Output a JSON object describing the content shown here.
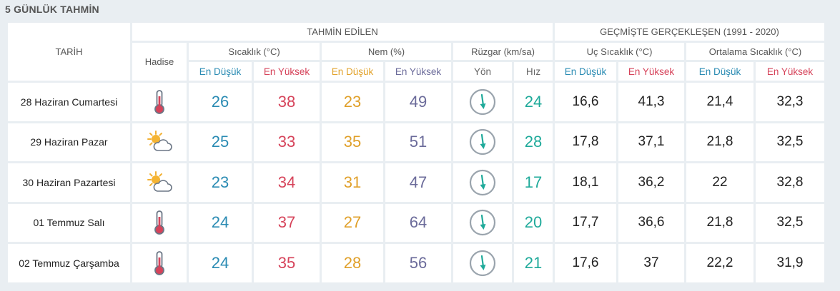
{
  "title": "5 GÜNLÜK TAHMİN",
  "headers": {
    "tarih": "TARİH",
    "tahmin": "TAHMİN EDİLEN",
    "gecmis": "GEÇMİŞTE GERÇEKLEŞEN (1991 - 2020)",
    "hadise": "Hadise",
    "sicaklik": "Sıcaklık (°C)",
    "nem": "Nem (%)",
    "ruzgar": "Rüzgar (km/sa)",
    "uc_sicaklik": "Uç Sıcaklık (°C)",
    "ort_sicaklik": "Ortalama Sıcaklık (°C)",
    "en_dusuk": "En Düşük",
    "en_yuksek": "En Yüksek",
    "yon": "Yön",
    "hiz": "Hız"
  },
  "colors": {
    "blue": "#2a8bb3",
    "red": "#d6435a",
    "amber": "#e0a02a",
    "purple": "#6b6b9a",
    "teal": "#1faa9a"
  },
  "rows": [
    {
      "date": "28 Haziran Cumartesi",
      "icon": "thermometer-icon",
      "temp_min": "26",
      "temp_max": "38",
      "hum_min": "23",
      "hum_max": "49",
      "wind_dir_icon": "wind-direction-icon",
      "wind_speed": "24",
      "ext_min": "16,6",
      "ext_max": "41,3",
      "avg_min": "21,4",
      "avg_max": "32,3"
    },
    {
      "date": "29 Haziran Pazar",
      "icon": "partly-cloudy-icon",
      "temp_min": "25",
      "temp_max": "33",
      "hum_min": "35",
      "hum_max": "51",
      "wind_dir_icon": "wind-direction-icon",
      "wind_speed": "28",
      "ext_min": "17,8",
      "ext_max": "37,1",
      "avg_min": "21,8",
      "avg_max": "32,5"
    },
    {
      "date": "30 Haziran Pazartesi",
      "icon": "partly-cloudy-icon",
      "temp_min": "23",
      "temp_max": "34",
      "hum_min": "31",
      "hum_max": "47",
      "wind_dir_icon": "wind-direction-icon",
      "wind_speed": "17",
      "ext_min": "18,1",
      "ext_max": "36,2",
      "avg_min": "22",
      "avg_max": "32,8"
    },
    {
      "date": "01 Temmuz Salı",
      "icon": "thermometer-icon",
      "temp_min": "24",
      "temp_max": "37",
      "hum_min": "27",
      "hum_max": "64",
      "wind_dir_icon": "wind-direction-icon",
      "wind_speed": "20",
      "ext_min": "17,7",
      "ext_max": "36,6",
      "avg_min": "21,8",
      "avg_max": "32,5"
    },
    {
      "date": "02 Temmuz Çarşamba",
      "icon": "thermometer-icon",
      "temp_min": "24",
      "temp_max": "35",
      "hum_min": "28",
      "hum_max": "56",
      "wind_dir_icon": "wind-direction-icon",
      "wind_speed": "21",
      "ext_min": "17,6",
      "ext_max": "37",
      "avg_min": "22,2",
      "avg_max": "31,9"
    }
  ]
}
